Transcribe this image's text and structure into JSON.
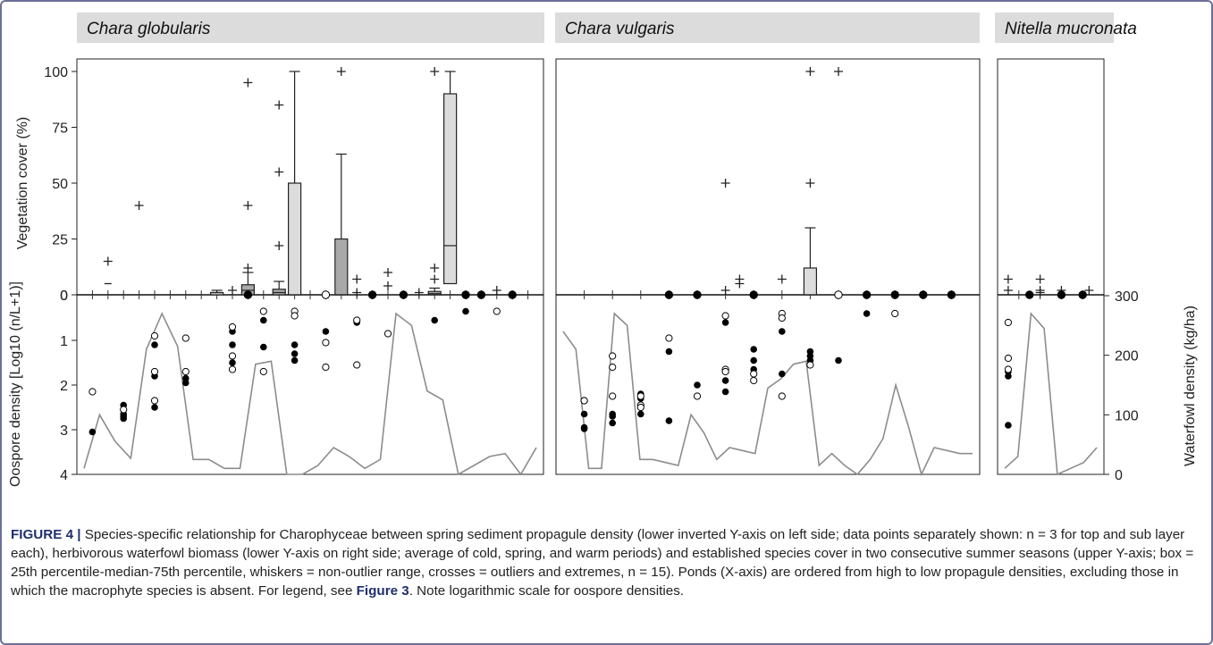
{
  "figure": {
    "label": "FIGURE 4 |",
    "caption_text": " Species-specific relationship for Charophyceae between spring sediment propagule density (lower inverted Y-axis on left side; data points separately shown: n = 3 for top and sub layer each), herbivorous waterfowl biomass (lower Y-axis on right side; average of cold, spring, and warm periods) and established species cover in two consecutive summer seasons (upper Y-axis; box = 25th percentile-median-75th percentile, whiskers = non-outlier range, crosses = outliers and extremes, n = 15). Ponds (X-axis) are ordered from high to low propagule densities, excluding those in which the macrophyte species is absent. For legend, see ",
    "caption_ref": "Figure 3",
    "caption_tail": ". Note logarithmic scale for oospore densities."
  },
  "colors": {
    "frame": "#6d6f9a",
    "header_bg": "#dcdcdc",
    "box_dark": "#a9a9a9",
    "box_light": "#dcdcdc",
    "line": "#8c8c8c",
    "caption_accent": "#1f2e6e"
  },
  "chart_data": [
    {
      "type": "box",
      "panel": "Chara globularis",
      "ylabel_top": "Vegetation cover (%)",
      "ylim_top": [
        0,
        100
      ],
      "yticks_top": [
        0,
        25,
        50,
        75,
        100
      ],
      "ylabel_bottom": "Oospore density [Log10 (n/L+1)]",
      "ylim_bottom": [
        0,
        4
      ],
      "yticks_bottom": [
        0,
        1,
        2,
        3,
        4
      ],
      "n_ponds": 29,
      "boxes": [
        {
          "pond": 9,
          "q1": 0,
          "median": 1,
          "q3": 1,
          "whisker_lo": 0,
          "whisker_hi": 2,
          "shade": "light"
        },
        {
          "pond": 11,
          "q1": 0,
          "median": 2,
          "q3": 4.5,
          "whisker_lo": 0,
          "whisker_hi": 10,
          "shade": "dark"
        },
        {
          "pond": 13,
          "q1": 0,
          "median": 1,
          "q3": 2.5,
          "whisker_lo": 0,
          "whisker_hi": 6,
          "shade": "dark"
        },
        {
          "pond": 14,
          "q1": 0,
          "median": 0,
          "q3": 50,
          "whisker_lo": 0,
          "whisker_hi": 100,
          "shade": "light"
        },
        {
          "pond": 17,
          "q1": 0,
          "median": 0,
          "q3": 25,
          "whisker_lo": 0,
          "whisker_hi": 63,
          "shade": "dark"
        },
        {
          "pond": 23,
          "q1": 0,
          "median": 0.5,
          "q3": 1.5,
          "whisker_lo": 0,
          "whisker_hi": 3,
          "shade": "dark"
        },
        {
          "pond": 24,
          "q1": 5,
          "median": 22,
          "q3": 90,
          "whisker_lo": 0,
          "whisker_hi": 100,
          "shade": "light"
        }
      ],
      "outliers": [
        {
          "pond": 2,
          "value": 15,
          "kind": "cross"
        },
        {
          "pond": 2,
          "value": 5,
          "kind": "dash"
        },
        {
          "pond": 4,
          "value": 40,
          "kind": "cross"
        },
        {
          "pond": 10,
          "value": 2,
          "kind": "cross"
        },
        {
          "pond": 11,
          "value": 95,
          "kind": "cross"
        },
        {
          "pond": 11,
          "value": 40,
          "kind": "cross"
        },
        {
          "pond": 11,
          "value": 12,
          "kind": "cross"
        },
        {
          "pond": 13,
          "value": 85,
          "kind": "cross"
        },
        {
          "pond": 13,
          "value": 55,
          "kind": "cross"
        },
        {
          "pond": 13,
          "value": 22,
          "kind": "cross"
        },
        {
          "pond": 17,
          "value": 100,
          "kind": "cross"
        },
        {
          "pond": 18,
          "value": 7,
          "kind": "cross"
        },
        {
          "pond": 18,
          "value": 1,
          "kind": "cross"
        },
        {
          "pond": 20,
          "value": 10,
          "kind": "cross"
        },
        {
          "pond": 20,
          "value": 4,
          "kind": "cross"
        },
        {
          "pond": 22,
          "value": 1,
          "kind": "cross"
        },
        {
          "pond": 23,
          "value": 100,
          "kind": "cross"
        },
        {
          "pond": 23,
          "value": 12,
          "kind": "cross"
        },
        {
          "pond": 23,
          "value": 7,
          "kind": "cross"
        },
        {
          "pond": 27,
          "value": 2,
          "kind": "cross"
        }
      ],
      "zero_dots": [
        {
          "pond": 11,
          "filled": true
        },
        {
          "pond": 16,
          "filled": false
        },
        {
          "pond": 19,
          "filled": true
        },
        {
          "pond": 21,
          "filled": true
        },
        {
          "pond": 25,
          "filled": true
        },
        {
          "pond": 26,
          "filled": true
        },
        {
          "pond": 28,
          "filled": true
        }
      ],
      "oospores": [
        {
          "pond": 1,
          "filled": [
            3.05
          ],
          "open": [
            2.15
          ]
        },
        {
          "pond": 3,
          "filled": [
            2.45,
            2.7,
            2.75,
            2.65
          ],
          "open": [
            2.55
          ]
        },
        {
          "pond": 5,
          "filled": [
            1.1,
            1.8,
            2.5
          ],
          "open": [
            0.9,
            1.7,
            2.35
          ]
        },
        {
          "pond": 7,
          "filled": [
            1.85,
            1.95
          ],
          "open": [
            0.95,
            1.7
          ]
        },
        {
          "pond": 10,
          "filled": [
            0.8,
            1.1,
            1.5
          ],
          "open": [
            0.7,
            1.35,
            1.65
          ]
        },
        {
          "pond": 12,
          "filled": [
            0.55,
            1.15
          ],
          "open": [
            0.35,
            1.7
          ]
        },
        {
          "pond": 14,
          "filled": [
            1.1,
            1.3,
            1.45
          ],
          "open": [
            0.35,
            0.45
          ]
        },
        {
          "pond": 16,
          "filled": [
            0.8
          ],
          "open": [
            1.05,
            1.6
          ]
        },
        {
          "pond": 18,
          "filled": [
            0.6
          ],
          "open": [
            0.55,
            1.55
          ]
        },
        {
          "pond": 20,
          "filled": [],
          "open": [
            0.85
          ]
        },
        {
          "pond": 23,
          "filled": [
            0.55
          ],
          "open": []
        },
        {
          "pond": 25,
          "filled": [
            0.35
          ],
          "open": []
        },
        {
          "pond": 27,
          "filled": [],
          "open": [
            0.35
          ]
        }
      ],
      "waterfowl": [
        10,
        100,
        55,
        27,
        210,
        270,
        215,
        25,
        25,
        10,
        10,
        185,
        190,
        0,
        0,
        15,
        45,
        30,
        10,
        25,
        270,
        250,
        140,
        125,
        0,
        15,
        30,
        35,
        0,
        45
      ]
    },
    {
      "type": "box",
      "panel": "Chara vulgaris",
      "ylim_top": [
        0,
        100
      ],
      "ylim_bottom": [
        0,
        4
      ],
      "n_ponds": 14,
      "boxes": [
        {
          "pond": 9,
          "q1": 0,
          "median": 0,
          "q3": 12,
          "whisker_lo": 0,
          "whisker_hi": 30,
          "shade": "light"
        }
      ],
      "outliers": [
        {
          "pond": 6,
          "value": 50,
          "kind": "cross"
        },
        {
          "pond": 6,
          "value": 2,
          "kind": "cross"
        },
        {
          "pond": 6.5,
          "value": 7,
          "kind": "cross"
        },
        {
          "pond": 6.5,
          "value": 5,
          "kind": "cross"
        },
        {
          "pond": 8,
          "value": 7,
          "kind": "cross"
        },
        {
          "pond": 9,
          "value": 100,
          "kind": "cross"
        },
        {
          "pond": 9,
          "value": 50,
          "kind": "cross"
        },
        {
          "pond": 10,
          "value": 100,
          "kind": "cross"
        }
      ],
      "zero_dots": [
        {
          "pond": 4,
          "filled": true
        },
        {
          "pond": 5,
          "filled": true
        },
        {
          "pond": 7,
          "filled": true
        },
        {
          "pond": 10,
          "filled": false
        },
        {
          "pond": 11,
          "filled": true
        },
        {
          "pond": 12,
          "filled": true
        },
        {
          "pond": 13,
          "filled": true
        },
        {
          "pond": 14,
          "filled": true
        }
      ],
      "oospores": [
        {
          "pond": 1,
          "filled": [
            2.65,
            2.95,
            2.98
          ],
          "open": [
            2.35,
            2.35
          ]
        },
        {
          "pond": 2,
          "filled": [
            2.65,
            2.85,
            2.7
          ],
          "open": [
            1.35,
            1.6,
            2.25
          ]
        },
        {
          "pond": 3,
          "filled": [
            2.2,
            2.3,
            2.65
          ],
          "open": [
            2.25,
            2.45,
            2.5
          ]
        },
        {
          "pond": 4,
          "filled": [
            1.25,
            2.8
          ],
          "open": [
            0.95
          ]
        },
        {
          "pond": 5,
          "filled": [
            2.0
          ],
          "open": [
            2.25
          ]
        },
        {
          "pond": 6,
          "filled": [
            0.6,
            1.9,
            2.15
          ],
          "open": [
            0.45,
            1.65,
            1.7
          ]
        },
        {
          "pond": 7,
          "filled": [
            1.2,
            1.45,
            1.65
          ],
          "open": [
            1.75,
            1.9
          ]
        },
        {
          "pond": 8,
          "filled": [
            0.8,
            1.75
          ],
          "open": [
            0.4,
            0.5,
            2.25
          ]
        },
        {
          "pond": 9,
          "filled": [
            1.25,
            1.35,
            1.45
          ],
          "open": [
            1.55
          ]
        },
        {
          "pond": 10,
          "filled": [
            1.45
          ],
          "open": []
        },
        {
          "pond": 11,
          "filled": [
            0.4
          ],
          "open": []
        },
        {
          "pond": 12,
          "filled": [],
          "open": [
            0.4
          ]
        }
      ],
      "waterfowl": [
        240,
        210,
        10,
        10,
        270,
        250,
        25,
        25,
        20,
        15,
        100,
        70,
        25,
        45,
        40,
        35,
        145,
        160,
        185,
        190,
        15,
        35,
        15,
        0,
        25,
        60,
        150,
        80,
        0,
        45,
        40,
        35,
        35
      ]
    },
    {
      "type": "box",
      "panel": "Nitella mucronata",
      "ylabel_right": "Waterfowl density (kg/ha)",
      "ylim_right": [
        0,
        300
      ],
      "yticks_right": [
        0,
        100,
        200,
        300
      ],
      "n_ponds": 4,
      "outliers": [
        {
          "pond": 0.5,
          "value": 7,
          "kind": "cross"
        },
        {
          "pond": 0.5,
          "value": 2,
          "kind": "cross"
        },
        {
          "pond": 2,
          "value": 7,
          "kind": "cross"
        },
        {
          "pond": 2,
          "value": 2,
          "kind": "cross"
        },
        {
          "pond": 2,
          "value": 1,
          "kind": "cross"
        },
        {
          "pond": 3,
          "value": 2,
          "kind": "cross"
        },
        {
          "pond": 4.3,
          "value": 2,
          "kind": "cross"
        }
      ],
      "zero_dots": [
        {
          "pond": 1.5,
          "filled": true
        },
        {
          "pond": 3,
          "filled": true
        },
        {
          "pond": 4,
          "filled": true
        }
      ],
      "oospores": [
        {
          "pond": 0.5,
          "filled": [
            1.7,
            1.8,
            2.9
          ],
          "open": [
            0.6,
            1.4,
            1.65
          ]
        }
      ],
      "waterfowl": [
        10,
        30,
        270,
        245,
        0,
        10,
        20,
        45
      ]
    }
  ]
}
